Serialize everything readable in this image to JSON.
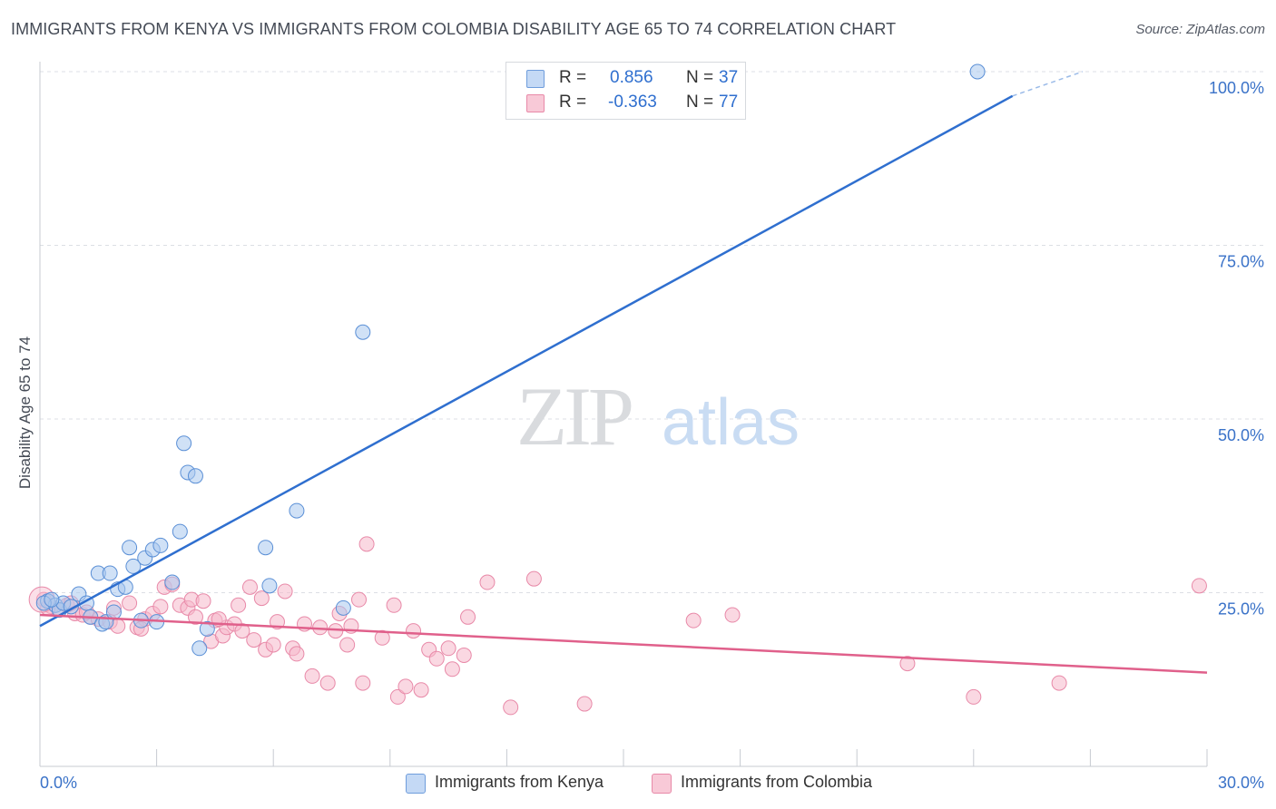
{
  "header": {
    "title": "IMMIGRANTS FROM KENYA VS IMMIGRANTS FROM COLOMBIA DISABILITY AGE 65 TO 74 CORRELATION CHART",
    "source": "Source: ZipAtlas.com"
  },
  "watermark": {
    "zip": "ZIP",
    "atlas": "atlas"
  },
  "legend": {
    "kenya": {
      "r_label": "R =",
      "r_value": "0.856",
      "n_label": "N =",
      "n_value": "37"
    },
    "colombia": {
      "r_label": "R =",
      "r_value": "-0.363",
      "n_label": "N =",
      "n_value": "77"
    }
  },
  "chart_data": {
    "type": "scatter",
    "title": "IMMIGRANTS FROM KENYA VS IMMIGRANTS FROM COLOMBIA DISABILITY AGE 65 TO 74 CORRELATION CHART",
    "xlabel": "",
    "ylabel": "Disability Age 65 to 74",
    "xlim": [
      0,
      30
    ],
    "ylim": [
      0,
      100
    ],
    "x_tick_labels": [
      "0.0%",
      "30.0%"
    ],
    "y_ticks": [
      25,
      50,
      75,
      100
    ],
    "y_tick_labels": [
      "25.0%",
      "50.0%",
      "75.0%",
      "100.0%"
    ],
    "grid": true,
    "legend_position": "top-center",
    "colors": {
      "kenya_fill": "#a9c8ef",
      "kenya_stroke": "#5a8fd6",
      "kenya_line": "#2f6fcf",
      "colombia_fill": "#f6b8cb",
      "colombia_stroke": "#e889a8",
      "colombia_line": "#e0608b",
      "tick_label": "#3a72c8",
      "grid": "#dcdfe4"
    },
    "series": [
      {
        "name": "Immigrants from Kenya",
        "r": 0.856,
        "n": 37,
        "trend": {
          "x": [
            0,
            25
          ],
          "y": [
            20.2,
            96.5
          ],
          "dashed_to": [
            26.8,
            100
          ]
        },
        "points": [
          [
            0.2,
            23.8
          ],
          [
            0.4,
            23.2
          ],
          [
            0.5,
            22.5
          ],
          [
            0.6,
            23.5
          ],
          [
            0.8,
            23.0
          ],
          [
            1.0,
            24.8
          ],
          [
            1.2,
            23.5
          ],
          [
            1.3,
            21.5
          ],
          [
            1.5,
            27.8
          ],
          [
            1.6,
            20.5
          ],
          [
            1.7,
            20.8
          ],
          [
            1.8,
            27.8
          ],
          [
            1.9,
            22.2
          ],
          [
            2.0,
            25.5
          ],
          [
            2.2,
            25.8
          ],
          [
            2.3,
            31.5
          ],
          [
            2.4,
            28.8
          ],
          [
            2.6,
            21.0
          ],
          [
            2.7,
            30.0
          ],
          [
            2.9,
            31.2
          ],
          [
            3.0,
            20.8
          ],
          [
            3.1,
            31.8
          ],
          [
            3.4,
            26.5
          ],
          [
            3.6,
            33.8
          ],
          [
            3.7,
            46.5
          ],
          [
            3.8,
            42.3
          ],
          [
            4.0,
            41.8
          ],
          [
            4.1,
            17.0
          ],
          [
            4.3,
            19.8
          ],
          [
            5.8,
            31.5
          ],
          [
            5.9,
            26.0
          ],
          [
            6.6,
            36.8
          ],
          [
            7.8,
            22.8
          ],
          [
            8.3,
            62.5
          ],
          [
            24.1,
            100.0
          ],
          [
            0.1,
            23.5
          ],
          [
            0.3,
            24.0
          ]
        ]
      },
      {
        "name": "Immigrants from Colombia",
        "r": -0.363,
        "n": 77,
        "trend": {
          "x": [
            0,
            30
          ],
          "y": [
            21.8,
            13.5
          ]
        },
        "points": [
          [
            0.1,
            24.0
          ],
          [
            0.3,
            23.0
          ],
          [
            0.5,
            22.5
          ],
          [
            0.7,
            23.2
          ],
          [
            0.9,
            22.0
          ],
          [
            1.1,
            21.8
          ],
          [
            1.3,
            21.5
          ],
          [
            1.5,
            21.2
          ],
          [
            1.8,
            20.8
          ],
          [
            1.9,
            22.8
          ],
          [
            2.0,
            20.2
          ],
          [
            2.3,
            23.5
          ],
          [
            2.5,
            20.0
          ],
          [
            2.7,
            21.2
          ],
          [
            2.9,
            22.0
          ],
          [
            3.1,
            23.0
          ],
          [
            3.2,
            25.8
          ],
          [
            3.4,
            26.2
          ],
          [
            3.6,
            23.2
          ],
          [
            3.8,
            22.8
          ],
          [
            3.9,
            24.0
          ],
          [
            4.0,
            21.5
          ],
          [
            4.2,
            23.8
          ],
          [
            4.4,
            18.0
          ],
          [
            4.5,
            21.0
          ],
          [
            4.7,
            18.8
          ],
          [
            4.8,
            20.0
          ],
          [
            5.0,
            20.5
          ],
          [
            5.1,
            23.2
          ],
          [
            5.2,
            19.5
          ],
          [
            5.4,
            25.8
          ],
          [
            5.5,
            18.2
          ],
          [
            5.7,
            24.2
          ],
          [
            5.8,
            16.8
          ],
          [
            6.0,
            17.5
          ],
          [
            6.1,
            20.8
          ],
          [
            6.3,
            25.2
          ],
          [
            6.5,
            17.0
          ],
          [
            6.6,
            16.2
          ],
          [
            6.8,
            20.5
          ],
          [
            7.0,
            13.0
          ],
          [
            7.2,
            20.0
          ],
          [
            7.4,
            12.0
          ],
          [
            7.6,
            19.5
          ],
          [
            7.7,
            22.0
          ],
          [
            7.9,
            17.5
          ],
          [
            8.0,
            20.2
          ],
          [
            8.2,
            24.0
          ],
          [
            8.3,
            12.0
          ],
          [
            8.4,
            32.0
          ],
          [
            8.8,
            18.5
          ],
          [
            9.1,
            23.2
          ],
          [
            9.2,
            10.0
          ],
          [
            9.4,
            11.5
          ],
          [
            9.6,
            19.5
          ],
          [
            9.8,
            11.0
          ],
          [
            10.0,
            16.8
          ],
          [
            10.2,
            15.5
          ],
          [
            10.5,
            17.0
          ],
          [
            10.6,
            14.0
          ],
          [
            10.9,
            16.0
          ],
          [
            11.0,
            21.5
          ],
          [
            11.5,
            26.5
          ],
          [
            12.1,
            8.5
          ],
          [
            12.7,
            27.0
          ],
          [
            14.0,
            9.0
          ],
          [
            16.8,
            21.0
          ],
          [
            17.8,
            21.8
          ],
          [
            22.3,
            14.8
          ],
          [
            24.0,
            10.0
          ],
          [
            26.2,
            12.0
          ],
          [
            29.8,
            26.0
          ],
          [
            0.2,
            22.8
          ],
          [
            0.8,
            23.5
          ],
          [
            1.2,
            22.2
          ],
          [
            2.6,
            19.8
          ],
          [
            4.6,
            21.2
          ]
        ]
      }
    ]
  }
}
